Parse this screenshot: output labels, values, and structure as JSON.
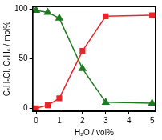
{
  "chart_data": {
    "type": "line",
    "x_label": "H₂O / vol%",
    "y_label": "C₆H₅Cl, C₆H₆ / mol%",
    "x": [
      0,
      0.5,
      1,
      2,
      3,
      5
    ],
    "series": [
      {
        "color": "#e8262a",
        "marker": "square",
        "line_style": "solid",
        "values": [
          0,
          3,
          10,
          58,
          93,
          94
        ]
      },
      {
        "color": "#1f7a1f",
        "marker": "triangle",
        "line_style": "solid",
        "values": [
          99,
          97,
          91,
          40,
          6,
          5
        ]
      }
    ],
    "xlim": [
      -0.15,
      5.15
    ],
    "xticks": [
      0,
      1,
      2,
      3,
      4,
      5
    ],
    "ylim": [
      -3,
      103
    ],
    "yticks": [
      0,
      50,
      100
    ],
    "grid": false
  }
}
